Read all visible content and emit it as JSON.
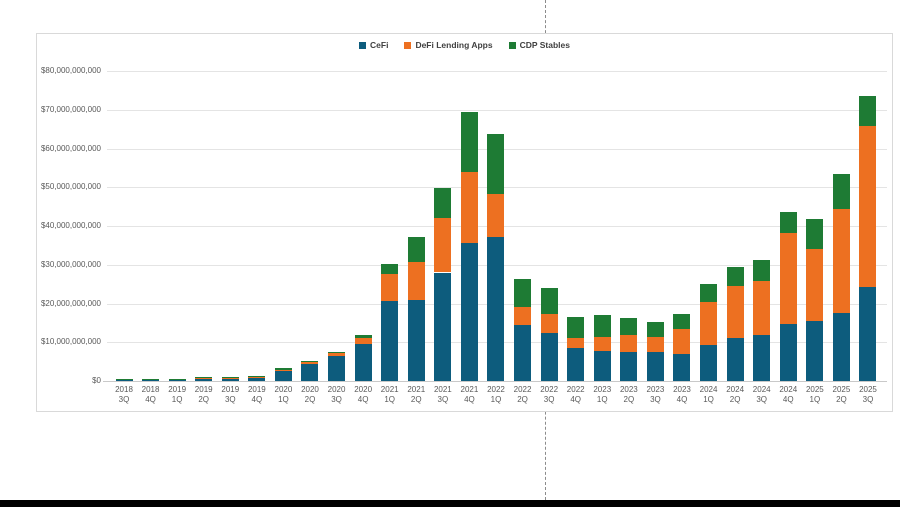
{
  "decorations": {
    "frame_border_color": "#d9d9d9",
    "guide_line_color": "#8c8c8c",
    "bottom_bar_color": "#000000"
  },
  "chart_data": {
    "type": "bar",
    "stacked": true,
    "title": "",
    "unit": "USD billions",
    "legend_position": "top",
    "grid": true,
    "categories": [
      {
        "year": "2018",
        "q": "3Q"
      },
      {
        "year": "2018",
        "q": "4Q"
      },
      {
        "year": "2019",
        "q": "1Q"
      },
      {
        "year": "2019",
        "q": "2Q"
      },
      {
        "year": "2019",
        "q": "3Q"
      },
      {
        "year": "2019",
        "q": "4Q"
      },
      {
        "year": "2020",
        "q": "1Q"
      },
      {
        "year": "2020",
        "q": "2Q"
      },
      {
        "year": "2020",
        "q": "3Q"
      },
      {
        "year": "2020",
        "q": "4Q"
      },
      {
        "year": "2021",
        "q": "1Q"
      },
      {
        "year": "2021",
        "q": "2Q"
      },
      {
        "year": "2021",
        "q": "3Q"
      },
      {
        "year": "2021",
        "q": "4Q"
      },
      {
        "year": "2022",
        "q": "1Q"
      },
      {
        "year": "2022",
        "q": "2Q"
      },
      {
        "year": "2022",
        "q": "3Q"
      },
      {
        "year": "2022",
        "q": "4Q"
      },
      {
        "year": "2023",
        "q": "1Q"
      },
      {
        "year": "2023",
        "q": "2Q"
      },
      {
        "year": "2023",
        "q": "3Q"
      },
      {
        "year": "2023",
        "q": "4Q"
      },
      {
        "year": "2024",
        "q": "1Q"
      },
      {
        "year": "2024",
        "q": "2Q"
      },
      {
        "year": "2024",
        "q": "3Q"
      },
      {
        "year": "2024",
        "q": "4Q"
      },
      {
        "year": "2025",
        "q": "1Q"
      },
      {
        "year": "2025",
        "q": "2Q"
      },
      {
        "year": "2025",
        "q": "3Q"
      }
    ],
    "series": [
      {
        "name": "CeFi",
        "color": "#0d5c7d",
        "values": [
          0.3,
          0.35,
          0.4,
          0.7,
          0.7,
          0.9,
          2.5,
          4.3,
          6.5,
          9.5,
          20.6,
          21.0,
          28.0,
          35.7,
          37.2,
          14.5,
          12.3,
          8.4,
          7.7,
          7.6,
          7.5,
          7.0,
          9.2,
          11.2,
          11.8,
          14.6,
          15.5,
          17.6,
          24.3
        ]
      },
      {
        "name": "DeFi Lending Apps",
        "color": "#ed7021",
        "values": [
          0.05,
          0.05,
          0.1,
          0.2,
          0.2,
          0.2,
          0.4,
          0.6,
          0.6,
          1.5,
          7.0,
          9.7,
          14.1,
          18.2,
          11.0,
          4.7,
          4.9,
          2.8,
          3.6,
          4.3,
          3.9,
          6.3,
          11.3,
          13.3,
          14.0,
          23.7,
          18.6,
          26.9,
          41.5
        ]
      },
      {
        "name": "CDP Stables",
        "color": "#1e7b34",
        "values": [
          0.05,
          0.1,
          0.1,
          0.2,
          0.2,
          0.3,
          0.4,
          0.3,
          0.5,
          0.9,
          2.7,
          6.5,
          7.8,
          15.5,
          15.6,
          7.2,
          6.9,
          5.2,
          5.7,
          4.3,
          3.9,
          3.9,
          4.6,
          5.0,
          5.4,
          5.3,
          7.8,
          9.0,
          7.7
        ]
      }
    ],
    "y_axis": {
      "min": 0,
      "max_billions": 80,
      "step_billions": 10,
      "tick_labels": [
        "$0",
        "$10,000,000,000",
        "$20,000,000,000",
        "$30,000,000,000",
        "$40,000,000,000",
        "$50,000,000,000",
        "$60,000,000,000",
        "$70,000,000,000",
        "$80,000,000,000"
      ]
    }
  }
}
